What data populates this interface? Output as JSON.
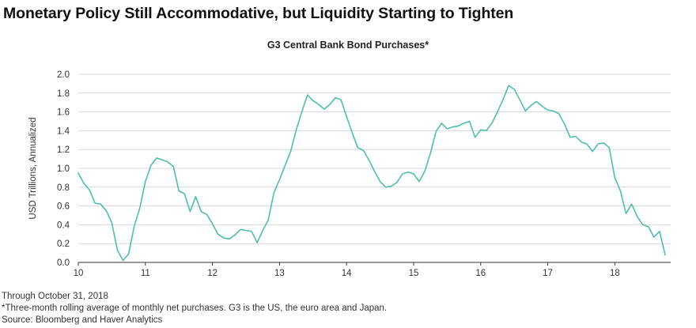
{
  "header": {
    "title": "Monetary Policy Still Accommodative, but Liquidity Starting to Tighten",
    "chart_title": "G3 Central Bank Bond Purchases*"
  },
  "footer": {
    "date_note": "Through October 31, 2018",
    "footnote": "*Three-month rolling average of monthly net purchases. G3 is the US, the euro area and Japan.",
    "source": "Source: Bloomberg and Haver Analytics"
  },
  "colors": {
    "line": "#4dbfab",
    "grid": "#d9d9d9",
    "axis": "#333333"
  },
  "chart_data": {
    "type": "line",
    "title": "G3 Central Bank Bond Purchases*",
    "xlabel": "",
    "ylabel": "USD Trillions, Annualized",
    "xlim": [
      10,
      18.833
    ],
    "ylim": [
      0,
      2.0
    ],
    "x_ticks": [
      10,
      11,
      12,
      13,
      14,
      15,
      16,
      17,
      18
    ],
    "y_ticks": [
      0.0,
      0.2,
      0.4,
      0.6,
      0.8,
      1.0,
      1.2,
      1.4,
      1.6,
      1.8,
      2.0
    ],
    "x_tick_labels": [
      "10",
      "11",
      "12",
      "13",
      "14",
      "15",
      "16",
      "17",
      "18"
    ],
    "y_tick_labels": [
      "0.0",
      "0.2",
      "0.4",
      "0.6",
      "0.8",
      "1.0",
      "1.2",
      "1.4",
      "1.6",
      "1.8",
      "2.0"
    ],
    "grid": "horizontal",
    "series": [
      {
        "x": [
          10.0,
          10.083,
          10.167,
          10.25,
          10.333,
          10.417,
          10.5,
          10.583,
          10.667,
          10.75,
          10.833,
          10.917,
          11.0,
          11.083,
          11.167,
          11.25,
          11.333,
          11.417,
          11.5,
          11.583,
          11.667,
          11.75,
          11.833,
          11.917,
          12.0,
          12.083,
          12.167,
          12.25,
          12.333,
          12.417,
          12.5,
          12.583,
          12.667,
          12.75,
          12.833,
          12.917,
          13.0,
          13.083,
          13.167,
          13.25,
          13.333,
          13.417,
          13.5,
          13.583,
          13.667,
          13.75,
          13.833,
          13.917,
          14.0,
          14.083,
          14.167,
          14.25,
          14.333,
          14.417,
          14.5,
          14.583,
          14.667,
          14.75,
          14.833,
          14.917,
          15.0,
          15.083,
          15.167,
          15.25,
          15.333,
          15.417,
          15.5,
          15.583,
          15.667,
          15.75,
          15.833,
          15.917,
          16.0,
          16.083,
          16.167,
          16.25,
          16.333,
          16.417,
          16.5,
          16.583,
          16.667,
          16.75,
          16.833,
          16.917,
          17.0,
          17.083,
          17.167,
          17.25,
          17.333,
          17.417,
          17.5,
          17.583,
          17.667,
          17.75,
          17.833,
          17.917,
          18.0,
          18.083,
          18.167,
          18.25,
          18.333,
          18.417,
          18.5,
          18.583,
          18.667,
          18.75
        ],
        "y": [
          0.95,
          0.84,
          0.77,
          0.63,
          0.62,
          0.55,
          0.42,
          0.13,
          0.02,
          0.09,
          0.38,
          0.58,
          0.86,
          1.03,
          1.11,
          1.09,
          1.07,
          1.02,
          0.76,
          0.73,
          0.54,
          0.7,
          0.54,
          0.51,
          0.41,
          0.3,
          0.26,
          0.25,
          0.29,
          0.35,
          0.34,
          0.33,
          0.21,
          0.34,
          0.45,
          0.74,
          0.88,
          1.03,
          1.18,
          1.41,
          1.6,
          1.78,
          1.72,
          1.68,
          1.63,
          1.68,
          1.75,
          1.73,
          1.55,
          1.38,
          1.22,
          1.19,
          1.09,
          0.97,
          0.86,
          0.8,
          0.81,
          0.85,
          0.94,
          0.96,
          0.94,
          0.86,
          0.97,
          1.16,
          1.39,
          1.48,
          1.42,
          1.44,
          1.45,
          1.48,
          1.5,
          1.33,
          1.41,
          1.4,
          1.48,
          1.6,
          1.73,
          1.88,
          1.84,
          1.73,
          1.61,
          1.67,
          1.71,
          1.66,
          1.62,
          1.61,
          1.58,
          1.47,
          1.33,
          1.34,
          1.28,
          1.26,
          1.18,
          1.26,
          1.27,
          1.22,
          0.9,
          0.76,
          0.52,
          0.62,
          0.49,
          0.4,
          0.38,
          0.27,
          0.33,
          0.08
        ]
      }
    ]
  }
}
